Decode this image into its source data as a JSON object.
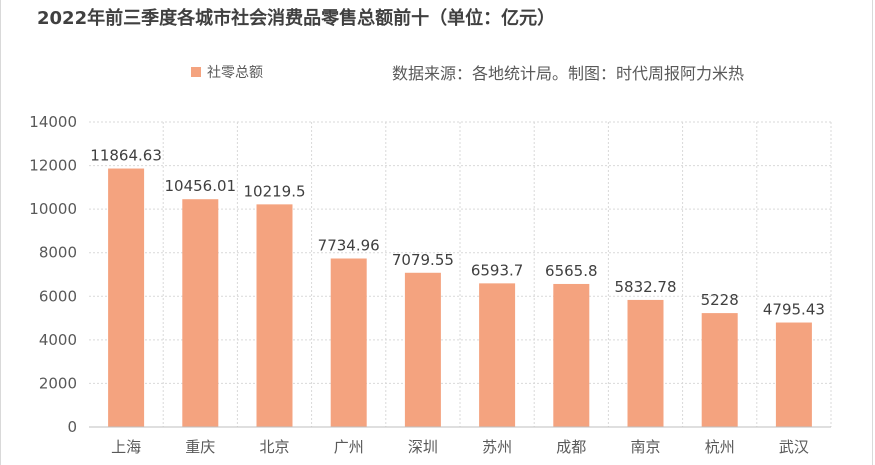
{
  "chart_data": {
    "type": "bar",
    "title": "2022年前三季度各城市社会消费品零售总额前十（单位：亿元）",
    "source_note": "数据来源：各地统计局。制图：时代周报阿力米热",
    "categories": [
      "上海",
      "重庆",
      "北京",
      "广州",
      "深圳",
      "苏州",
      "成都",
      "南京",
      "杭州",
      "武汉"
    ],
    "series": [
      {
        "name": "社零总额",
        "values": [
          11864.63,
          10456.01,
          10219.5,
          7734.96,
          7079.55,
          6593.7,
          6565.8,
          5832.78,
          5228,
          4795.43
        ],
        "labels": [
          "11864.63",
          "10456.01",
          "10219.5",
          "7734.96",
          "7079.55",
          "6593.7",
          "6565.8",
          "5832.78",
          "5228",
          "4795.43"
        ],
        "color": "#F4A37F"
      }
    ],
    "yticks": [
      "0",
      "2000",
      "4000",
      "6000",
      "8000",
      "10000",
      "12000",
      "14000"
    ],
    "ylim": [
      0,
      14000
    ],
    "grid": true,
    "legend_position": "top-left"
  }
}
